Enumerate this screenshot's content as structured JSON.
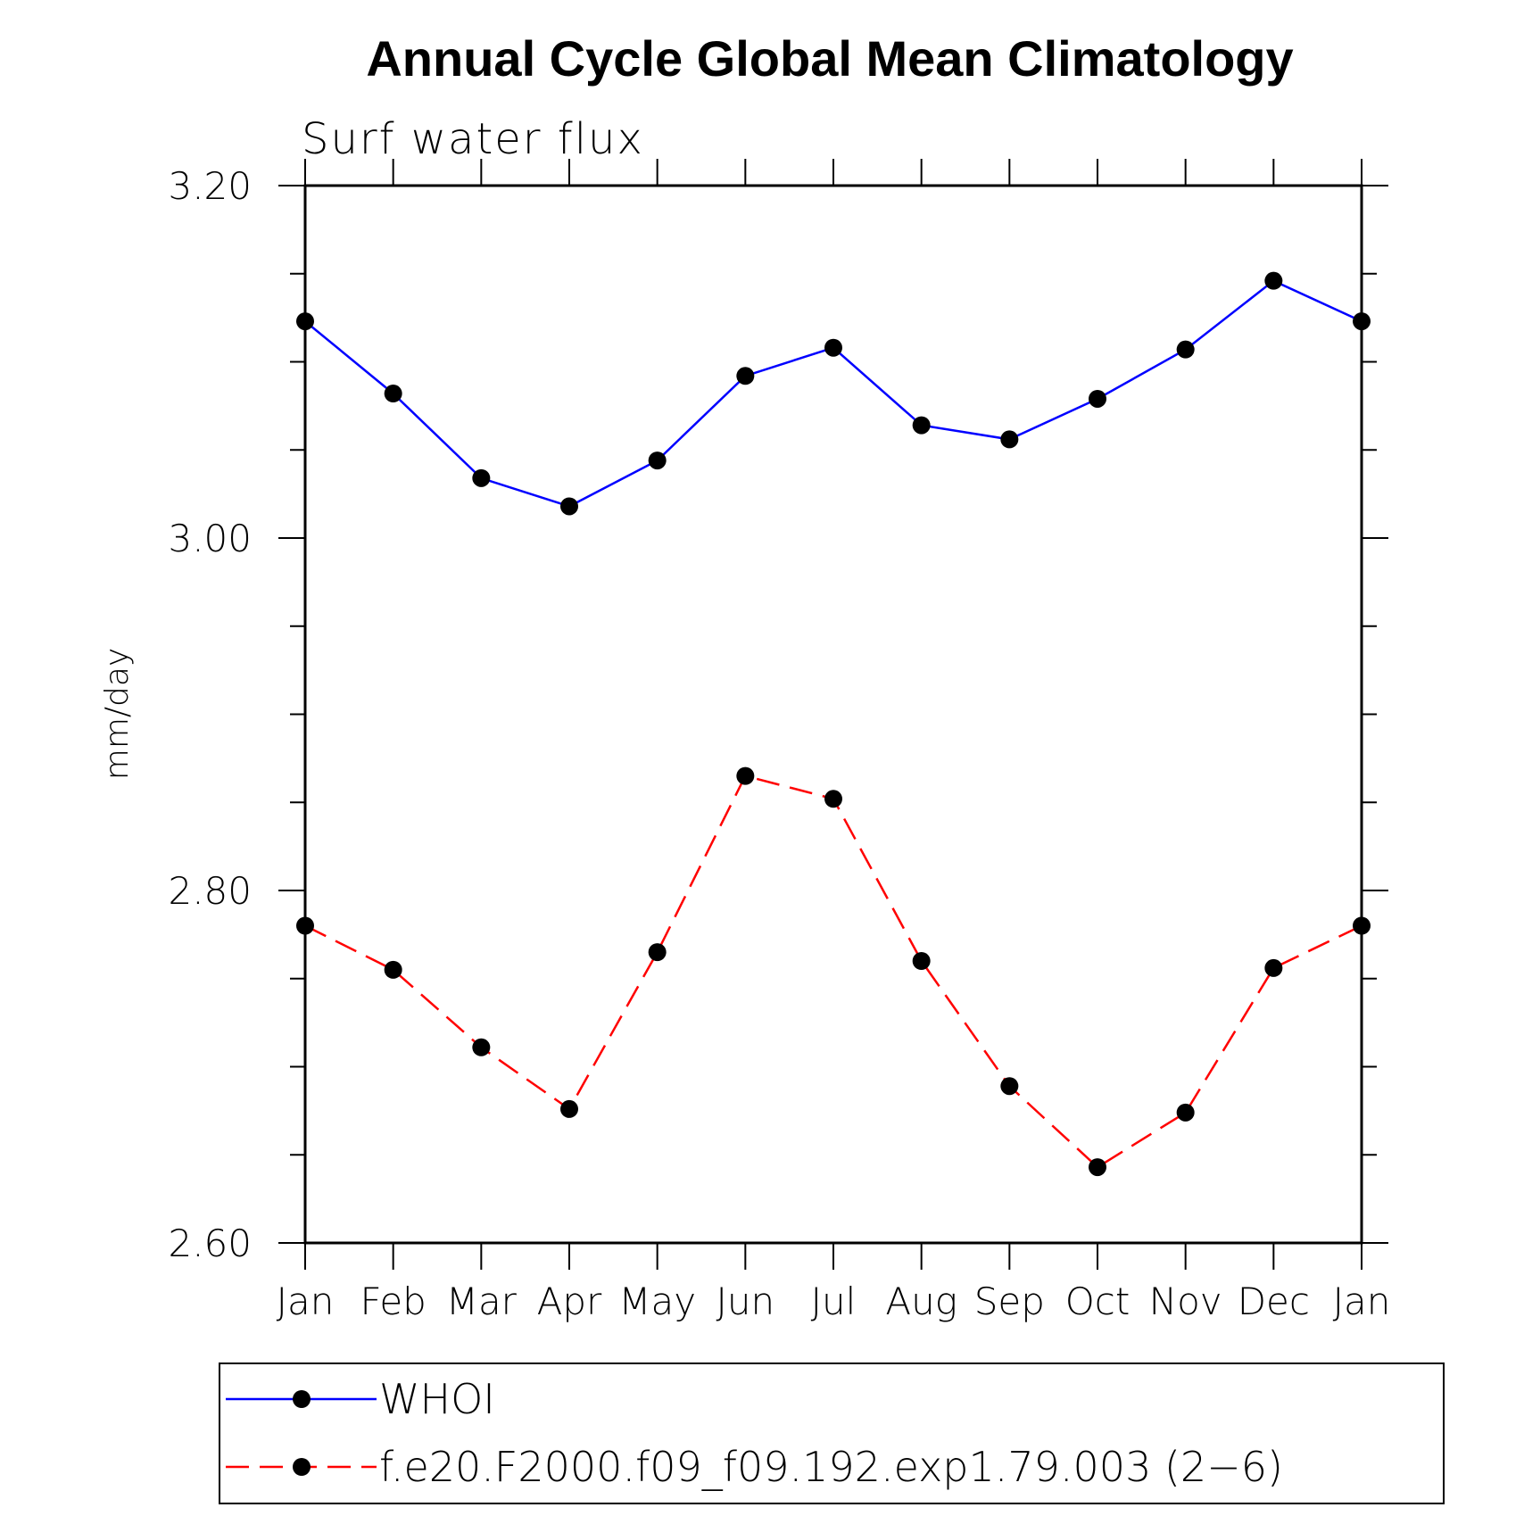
{
  "chart_data": {
    "type": "line",
    "title": "Annual Cycle Global Mean Climatology",
    "subtitle": "Surf water flux",
    "ylabel": "mm/day",
    "xlabel": "",
    "categories": [
      "Jan",
      "Feb",
      "Mar",
      "Apr",
      "May",
      "Jun",
      "Jul",
      "Aug",
      "Sep",
      "Oct",
      "Nov",
      "Dec",
      "Jan"
    ],
    "ylim": [
      2.6,
      3.2
    ],
    "yticks": [
      "3.20",
      "3.00",
      "2.80",
      "2.60"
    ],
    "ytick_values": [
      3.2,
      3.0,
      2.8,
      2.6
    ],
    "minor_step": 0.05,
    "legend_position": "bottom",
    "series": [
      {
        "name": "WHOI",
        "color": "#0000ff",
        "dash": "solid",
        "marker": "filled-circle",
        "values": [
          3.123,
          3.082,
          3.034,
          3.018,
          3.044,
          3.092,
          3.108,
          3.064,
          3.056,
          3.079,
          3.107,
          3.146,
          3.123
        ]
      },
      {
        "name": "f.e20.F2000.f09_f09.192.exp1.79.003 (2−6)",
        "color": "#ff0000",
        "dash": "dashed",
        "marker": "filled-circle",
        "values": [
          2.78,
          2.755,
          2.711,
          2.676,
          2.765,
          2.865,
          2.852,
          2.76,
          2.689,
          2.643,
          2.674,
          2.756,
          2.78
        ]
      }
    ]
  }
}
